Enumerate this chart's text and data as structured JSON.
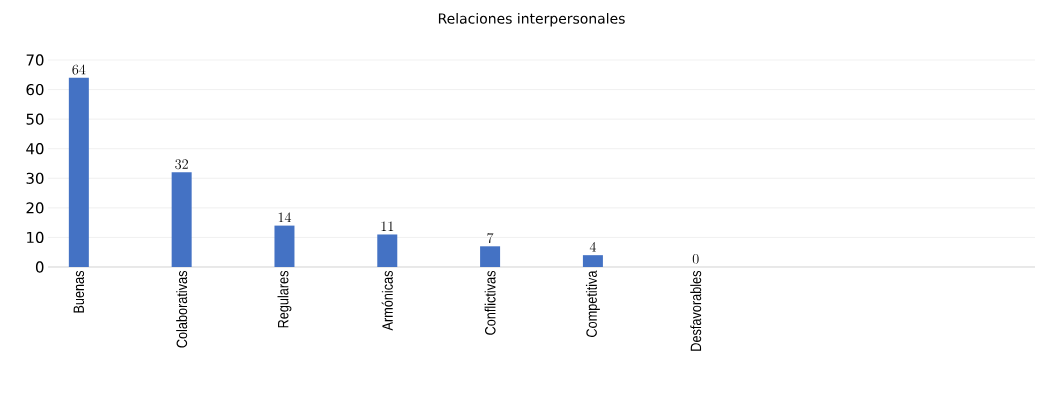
{
  "chart_data": {
    "type": "bar",
    "title": "Relaciones interpersonales",
    "categories": [
      "Buenas",
      "Colaborativas",
      "Regulares",
      "Armónicas",
      "Conflictivas",
      "Competitiva",
      "Desfavorables"
    ],
    "values": [
      64,
      32,
      14,
      11,
      7,
      4,
      0
    ],
    "color": "#4472c4",
    "ylim": [
      0,
      70
    ],
    "yticks": [
      0,
      10,
      20,
      30,
      40,
      50,
      60,
      70
    ],
    "grid": "y",
    "data_labels": true
  }
}
